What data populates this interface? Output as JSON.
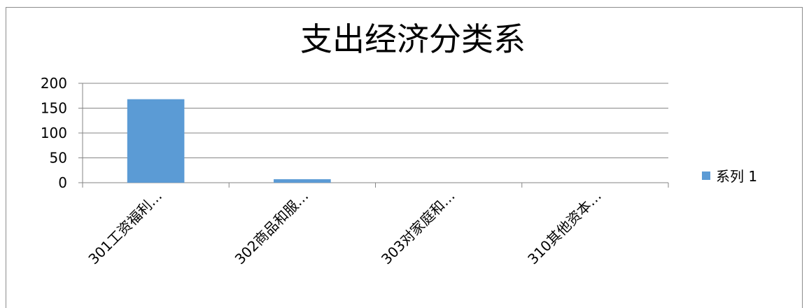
{
  "chart_data": {
    "type": "bar",
    "title": "支出经济分类系",
    "categories": [
      "301工资福利…",
      "302商品和服…",
      "303对家庭和…",
      "310其他资本…"
    ],
    "series": [
      {
        "name": "系列 1",
        "values": [
          168,
          7,
          0,
          0
        ]
      }
    ],
    "ylim": [
      0,
      200
    ],
    "yticks": [
      0,
      50,
      100,
      150,
      200
    ],
    "grid": true,
    "legend": "right",
    "colors": {
      "series": "#5b9bd5",
      "grid": "#878787",
      "axis": "#868686"
    }
  }
}
